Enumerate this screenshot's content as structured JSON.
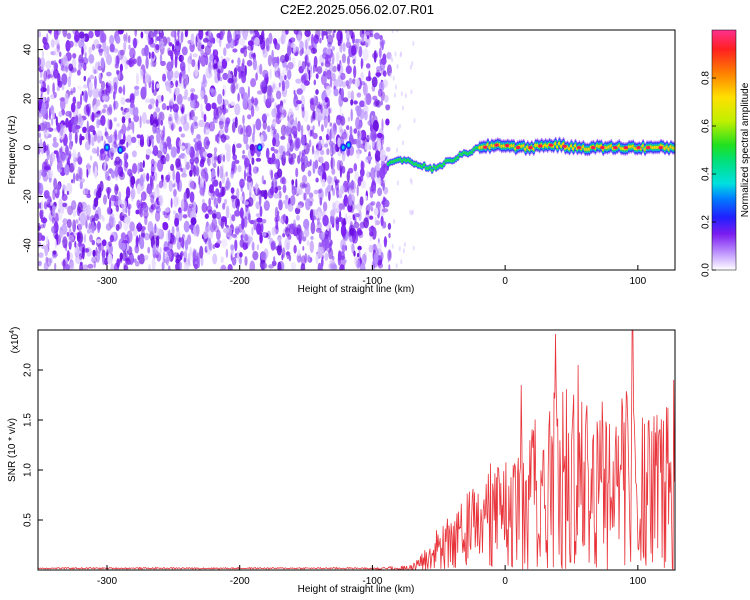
{
  "figure_title": "C2E2.2025.056.02.07.R01",
  "chart_data": [
    {
      "type": "heatmap",
      "title": "C2E2.2025.056.02.07.R01",
      "xlabel": "Height of straight line (km)",
      "ylabel": "Frequency (Hz)",
      "xlim": [
        -352,
        128
      ],
      "ylim": [
        -50,
        48
      ],
      "x_ticks": [
        -300,
        -200,
        -100,
        0,
        100
      ],
      "x_tick_labels": [
        "-300",
        "-200",
        "-100",
        "0",
        "100"
      ],
      "y_ticks": [
        -40,
        -20,
        0,
        20,
        40
      ],
      "y_tick_labels": [
        "-40",
        "-20",
        "0",
        "20",
        "40"
      ],
      "grid": false,
      "colorbar": {
        "label": "Normalized spectral amplitude",
        "range": [
          0,
          1
        ],
        "ticks": [
          0.0,
          0.2,
          0.4,
          0.6,
          0.8
        ],
        "tick_labels": [
          "0.0",
          "0.2",
          "0.4",
          "0.6",
          "0.8"
        ]
      },
      "noise_region_x": [
        -352,
        -87
      ],
      "signal_track": [
        {
          "x": -88,
          "freq": -6
        },
        {
          "x": -80,
          "freq": -5
        },
        {
          "x": -72,
          "freq": -6
        },
        {
          "x": -64,
          "freq": -7
        },
        {
          "x": -56,
          "freq": -9
        },
        {
          "x": -48,
          "freq": -7
        },
        {
          "x": -40,
          "freq": -5
        },
        {
          "x": -32,
          "freq": -3
        },
        {
          "x": -24,
          "freq": -1
        },
        {
          "x": -16,
          "freq": 0
        },
        {
          "x": -8,
          "freq": 1
        },
        {
          "x": 0,
          "freq": 1
        },
        {
          "x": 10,
          "freq": 0
        },
        {
          "x": 20,
          "freq": 0
        },
        {
          "x": 30,
          "freq": 1
        },
        {
          "x": 40,
          "freq": 1
        },
        {
          "x": 50,
          "freq": 0
        },
        {
          "x": 60,
          "freq": 0
        },
        {
          "x": 70,
          "freq": 0
        },
        {
          "x": 80,
          "freq": 0
        },
        {
          "x": 90,
          "freq": 0
        },
        {
          "x": 100,
          "freq": 0
        },
        {
          "x": 110,
          "freq": 0
        },
        {
          "x": 120,
          "freq": 0
        },
        {
          "x": 128,
          "freq": 0
        }
      ],
      "colors": {
        "noise": "#7a1cf0",
        "track_core": "#ff1a4a"
      }
    },
    {
      "type": "line",
      "xlabel": "Height of straight line (km)",
      "ylabel": "SNR (10 * v/v)",
      "y_multiplier_label": "(x10",
      "y_multiplier_exponent": "4",
      "y_multiplier_close": ")",
      "xlim": [
        -352,
        128
      ],
      "ylim": [
        0,
        2.4
      ],
      "x_ticks": [
        -300,
        -200,
        -100,
        0,
        100
      ],
      "x_tick_labels": [
        "-300",
        "-200",
        "-100",
        "0",
        "100"
      ],
      "y_ticks": [
        0.5,
        1.0,
        1.5,
        2.0
      ],
      "y_tick_labels": [
        "0.5",
        "1.0",
        "1.5",
        "2.0"
      ],
      "grid": false,
      "series": [
        {
          "color": "#e8343a",
          "envelope": [
            {
              "x": -352,
              "y": 0.02
            },
            {
              "x": -100,
              "y": 0.02
            },
            {
              "x": -70,
              "y": 0.05
            },
            {
              "x": -60,
              "y": 0.2
            },
            {
              "x": -50,
              "y": 0.45
            },
            {
              "x": -40,
              "y": 0.6
            },
            {
              "x": -30,
              "y": 0.75
            },
            {
              "x": -20,
              "y": 0.9
            },
            {
              "x": -10,
              "y": 1.05
            },
            {
              "x": 0,
              "y": 1.1
            },
            {
              "x": 10,
              "y": 1.2
            },
            {
              "x": 20,
              "y": 1.5
            },
            {
              "x": 30,
              "y": 1.7
            },
            {
              "x": 40,
              "y": 2.0
            },
            {
              "x": 50,
              "y": 1.85
            },
            {
              "x": 60,
              "y": 1.75
            },
            {
              "x": 70,
              "y": 1.7
            },
            {
              "x": 80,
              "y": 1.6
            },
            {
              "x": 90,
              "y": 1.8
            },
            {
              "x": 100,
              "y": 1.55
            },
            {
              "x": 110,
              "y": 1.6
            },
            {
              "x": 120,
              "y": 1.7
            },
            {
              "x": 128,
              "y": 1.7
            }
          ],
          "peaks": [
            {
              "x": 38,
              "y": 2.36
            },
            {
              "x": 96,
              "y": 2.42
            },
            {
              "x": 12,
              "y": 1.85
            },
            {
              "x": 55,
              "y": 2.05
            },
            {
              "x": 127,
              "y": 1.9
            }
          ]
        }
      ]
    }
  ]
}
